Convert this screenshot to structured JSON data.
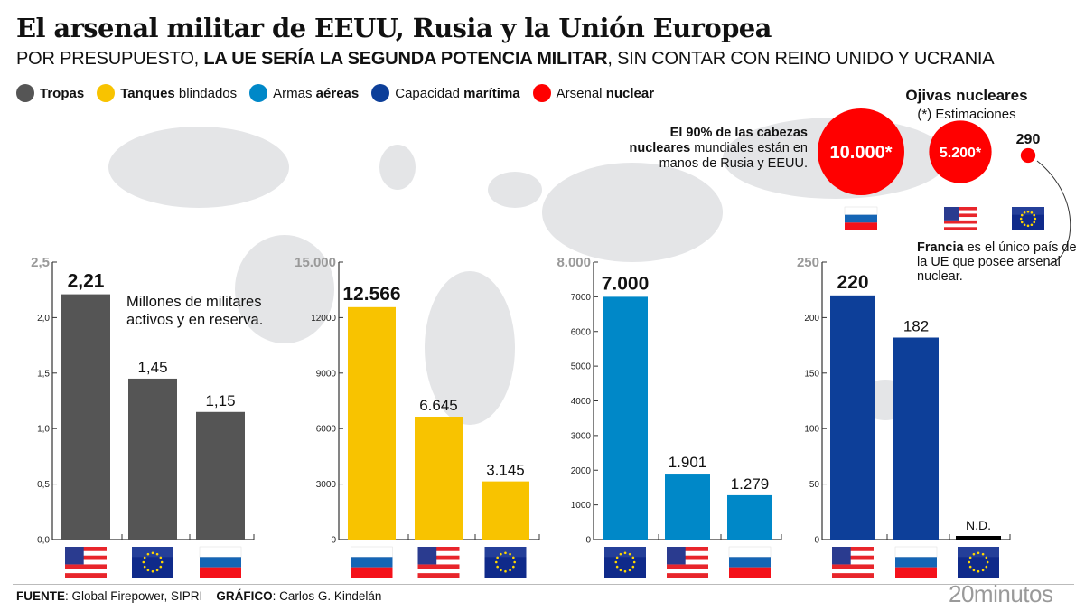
{
  "title": "El arsenal militar de EEUU, Rusia y la Unión Europea",
  "subtitle": {
    "part1": "POR PRESUPUESTO, ",
    "bold": "LA UE SERÍA LA SEGUNDA POTENCIA MILITAR",
    "part2": ", SIN CONTAR CON REINO UNIDO Y UCRANIA"
  },
  "legend": [
    {
      "bold": "Tropas",
      "rest": "",
      "color": "#555555"
    },
    {
      "bold": "Tanques",
      "rest": " blindados",
      "color": "#F8C300"
    },
    {
      "pre": "Armas ",
      "bold": "aéreas",
      "color": "#0088C8"
    },
    {
      "pre": "Capacidad ",
      "bold": "marítima",
      "color": "#0D3F99"
    },
    {
      "pre": "Arsenal ",
      "bold": "nuclear",
      "color": "#FF0000"
    }
  ],
  "nuclear": {
    "title": "Ojivas nucleares",
    "subtitle": "(*) Estimaciones",
    "note_bold": "El 90% de las cabezas nucleares",
    "note_rest": " mundiales están en manos de Rusia y EEUU.",
    "items": [
      {
        "country": "Rusia",
        "label": "10.000*",
        "value": 10000
      },
      {
        "country": "EEUU",
        "label": "5.200*",
        "value": 5200
      },
      {
        "country": "UE",
        "label": "290",
        "value": 290
      }
    ],
    "francia_bold": "Francia",
    "francia_rest": " es el único país de la UE que posee arsenal nuclear.",
    "color": "#FF0000"
  },
  "troops_note": "Millones de militares activos y en reserva.",
  "chart_data": [
    {
      "type": "bar",
      "title": "Tropas",
      "ylim": [
        0,
        2.5
      ],
      "ticks": [
        0,
        0.5,
        1,
        1.5,
        2,
        2.5
      ],
      "tick_labels": [
        "0,0",
        "0,5",
        "1,0",
        "1,5",
        "2,0",
        "2,5"
      ],
      "color": "#555555",
      "categories": [
        "EEUU",
        "UE",
        "Rusia"
      ],
      "values": [
        2.21,
        1.45,
        1.15
      ],
      "labels": [
        "2,21",
        "1,45",
        "1,15"
      ]
    },
    {
      "type": "bar",
      "title": "Tanques blindados",
      "ylim": [
        0,
        15000
      ],
      "ticks": [
        0,
        3000,
        6000,
        9000,
        12000,
        15000
      ],
      "tick_labels": [
        "0",
        "3000",
        "6000",
        "9000",
        "12000",
        "15.000"
      ],
      "color": "#F8C300",
      "categories": [
        "Rusia",
        "EEUU",
        "UE"
      ],
      "values": [
        12566,
        6645,
        3145
      ],
      "labels": [
        "12.566",
        "6.645",
        "3.145"
      ]
    },
    {
      "type": "bar",
      "title": "Armas aéreas",
      "ylim": [
        0,
        8000
      ],
      "ticks": [
        0,
        1000,
        2000,
        3000,
        4000,
        5000,
        6000,
        7000,
        8000
      ],
      "tick_labels": [
        "0",
        "1000",
        "2000",
        "3000",
        "4000",
        "5000",
        "6000",
        "7000",
        "8.000"
      ],
      "color": "#0088C8",
      "categories": [
        "UE",
        "EEUU",
        "Rusia"
      ],
      "values": [
        7000,
        1901,
        1279
      ],
      "labels": [
        "7.000",
        "1.901",
        "1.279"
      ]
    },
    {
      "type": "bar",
      "title": "Capacidad marítima",
      "ylim": [
        0,
        250
      ],
      "ticks": [
        0,
        50,
        100,
        150,
        200,
        250
      ],
      "tick_labels": [
        "0",
        "50",
        "100",
        "150",
        "200",
        "250"
      ],
      "color": "#0D3F99",
      "categories": [
        "EEUU",
        "Rusia",
        "UE"
      ],
      "values": [
        220,
        182,
        null
      ],
      "labels": [
        "220",
        "182",
        "N.D."
      ]
    }
  ],
  "footer": {
    "source_label": "FUENTE",
    "source": ": Global Firepower, SIPRI",
    "graphic_label": "GRÁFICO",
    "graphic": ": Carlos G. Kindelán"
  },
  "logo": "20minutos"
}
